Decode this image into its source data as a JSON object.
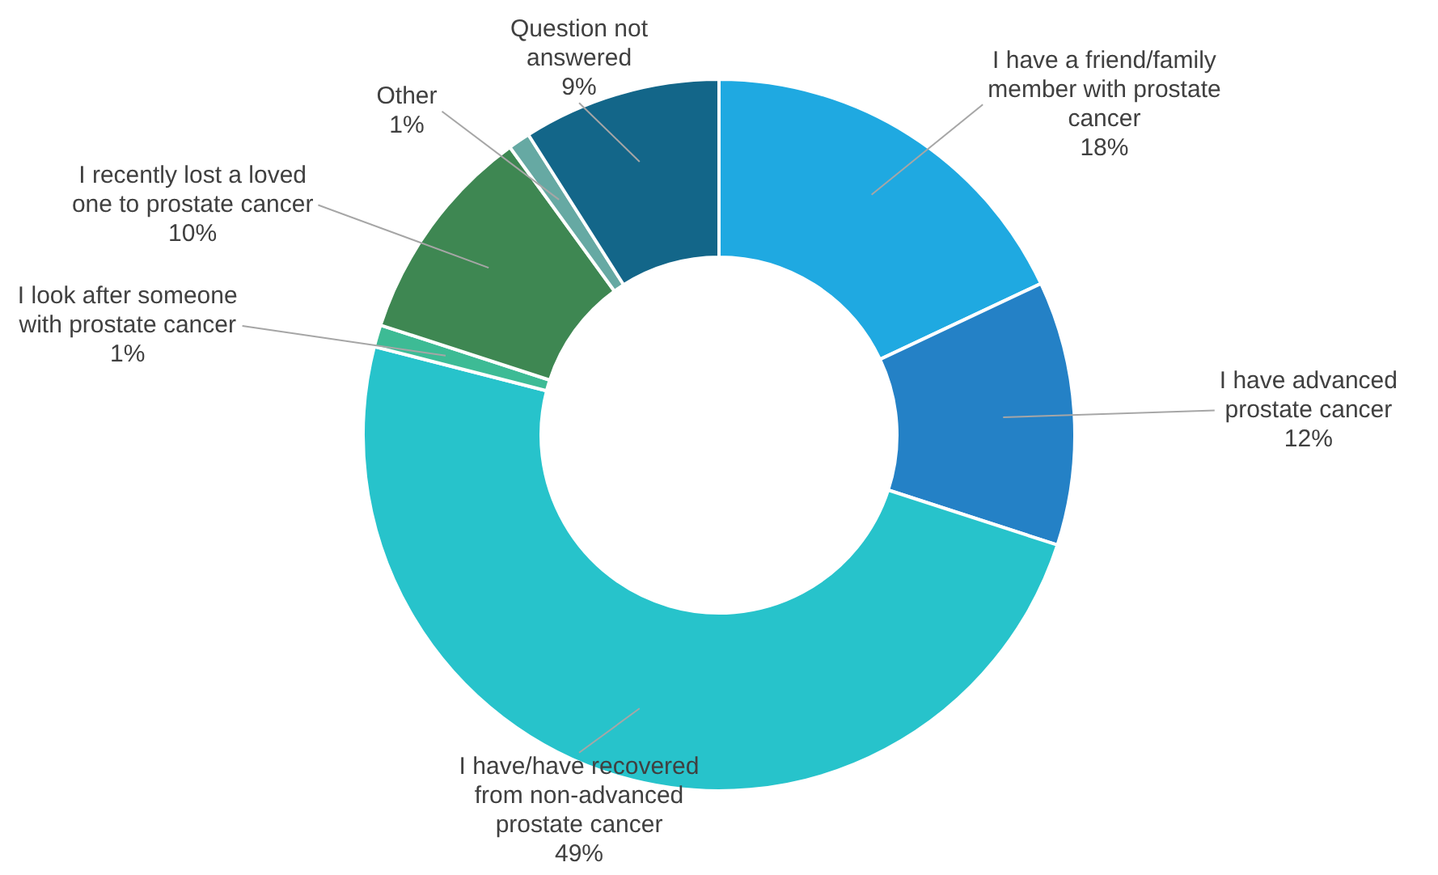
{
  "chart_data": {
    "type": "donut",
    "categories": [
      "I have a friend/family member with prostate cancer",
      "I have advanced prostate cancer",
      "I have/have recovered from non-advanced prostate cancer",
      "I look after someone with prostate cancer",
      "I recently lost a loved one to prostate cancer",
      "Other",
      "Question not answered"
    ],
    "values": [
      18,
      12,
      49,
      1,
      10,
      1,
      9
    ],
    "value_labels": [
      "18%",
      "12%",
      "49%",
      "1%",
      "10%",
      "1%",
      "9%"
    ],
    "colors": [
      "#1fa9e1",
      "#2481c6",
      "#27c3cb",
      "#3dbb95",
      "#3e8752",
      "#66a9a3",
      "#136689"
    ],
    "legend": false
  }
}
